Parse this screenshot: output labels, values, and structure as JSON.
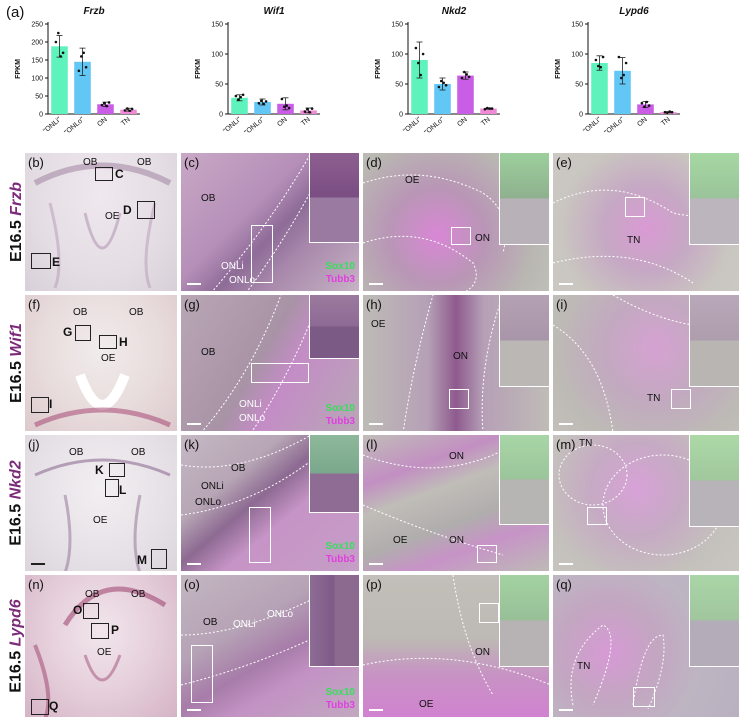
{
  "panel_a_label": "(a)",
  "chart_data": [
    {
      "type": "bar",
      "title": "Frzb",
      "ylabel": "FPKM",
      "categories": [
        "\"ONLi\"",
        "\"ONLo\"",
        "ON",
        "TN"
      ],
      "values": [
        188,
        145,
        27,
        12
      ],
      "errors": [
        30,
        38,
        6,
        4
      ],
      "points": [
        [
          200,
          225,
          160,
          170
        ],
        [
          120,
          160,
          170,
          130
        ],
        [
          25,
          30,
          22,
          32
        ],
        [
          10,
          15,
          9,
          14
        ]
      ],
      "ylim": [
        0,
        250
      ],
      "yticks": [
        0,
        50,
        100,
        150,
        200,
        250
      ],
      "colors": [
        "#5ef2bd",
        "#62c7f5",
        "#c95de6",
        "#f08ad6"
      ]
    },
    {
      "type": "bar",
      "title": "Wif1",
      "ylabel": "FPKM",
      "categories": [
        "\"ONLi\"",
        "\"ONLo\"",
        "ON",
        "TN"
      ],
      "values": [
        27,
        20,
        17,
        6
      ],
      "errors": [
        5,
        5,
        10,
        4
      ],
      "points": [
        [
          30,
          24,
          28,
          32
        ],
        [
          18,
          22,
          17,
          21
        ],
        [
          25,
          12,
          14,
          10
        ],
        [
          4,
          8,
          3,
          9
        ]
      ],
      "ylim": [
        0,
        150
      ],
      "yticks": [
        0,
        50,
        100,
        150
      ],
      "colors": [
        "#5ef2bd",
        "#62c7f5",
        "#c95de6",
        "#f08ad6"
      ]
    },
    {
      "type": "bar",
      "title": "Nkd2",
      "ylabel": "FPKM",
      "categories": [
        "\"ONLi\"",
        "\"ONLo\"",
        "ON",
        "TN"
      ],
      "values": [
        90,
        50,
        64,
        9
      ],
      "errors": [
        30,
        10,
        6,
        1
      ],
      "points": [
        [
          110,
          85,
          65,
          100
        ],
        [
          45,
          55,
          52,
          48
        ],
        [
          60,
          70,
          66,
          62
        ],
        [
          8,
          10,
          9,
          9
        ]
      ],
      "ylim": [
        0,
        150
      ],
      "yticks": [
        0,
        50,
        100,
        150
      ],
      "colors": [
        "#5ef2bd",
        "#62c7f5",
        "#c95de6",
        "#f08ad6"
      ]
    },
    {
      "type": "bar",
      "title": "Lypd6",
      "ylabel": "FPKM",
      "categories": [
        "\"ONLi\"",
        "\"ONLo\"",
        "ON",
        "TN"
      ],
      "values": [
        85,
        72,
        16,
        3
      ],
      "errors": [
        12,
        22,
        5,
        1
      ],
      "points": [
        [
          90,
          80,
          78,
          95
        ],
        [
          95,
          60,
          65,
          85
        ],
        [
          18,
          12,
          20,
          14
        ],
        [
          3,
          2,
          4,
          3
        ]
      ],
      "ylim": [
        0,
        150
      ],
      "yticks": [
        0,
        50,
        100,
        150
      ],
      "colors": [
        "#5ef2bd",
        "#62c7f5",
        "#c95de6",
        "#f08ad6"
      ]
    }
  ],
  "rows": [
    {
      "stage": "E16.5",
      "gene": "Frzb",
      "overview": {
        "label": "(b)",
        "tags": [
          "OB",
          "OB",
          "C",
          "D",
          "OE",
          "E"
        ]
      },
      "panels": [
        {
          "label": "(c)",
          "tags": [
            "OB",
            "ONLi",
            "ONLo"
          ],
          "marker1": "Sox10",
          "marker2": "Tubb3"
        },
        {
          "label": "(d)",
          "tags": [
            "OE",
            "ON"
          ]
        },
        {
          "label": "(e)",
          "tags": [
            "TN"
          ]
        }
      ]
    },
    {
      "stage": "E16.5",
      "gene": "Wif1",
      "overview": {
        "label": "(f)",
        "tags": [
          "OB",
          "OB",
          "G",
          "H",
          "OE",
          "I"
        ]
      },
      "panels": [
        {
          "label": "(g)",
          "tags": [
            "OB",
            "ONLi",
            "ONLo"
          ],
          "marker1": "Sox10",
          "marker2": "Tubb3"
        },
        {
          "label": "(h)",
          "tags": [
            "OE",
            "ON"
          ]
        },
        {
          "label": "(i)",
          "tags": [
            "TN"
          ]
        }
      ]
    },
    {
      "stage": "E16.5",
      "gene": "Nkd2",
      "overview": {
        "label": "(j)",
        "tags": [
          "OB",
          "OB",
          "K",
          "L",
          "OE",
          "M"
        ]
      },
      "panels": [
        {
          "label": "(k)",
          "tags": [
            "OB",
            "ONLi",
            "ONLo"
          ],
          "marker1": "Sox10",
          "marker2": "Tubb3"
        },
        {
          "label": "(l)",
          "tags": [
            "ON",
            "OE",
            "ON"
          ]
        },
        {
          "label": "(m)",
          "tags": [
            "TN"
          ]
        }
      ]
    },
    {
      "stage": "E16.5",
      "gene": "Lypd6",
      "overview": {
        "label": "(n)",
        "tags": [
          "OB",
          "OB",
          "O",
          "P",
          "OE",
          "Q"
        ]
      },
      "panels": [
        {
          "label": "(o)",
          "tags": [
            "OB",
            "ONLi",
            "ONLo"
          ],
          "marker1": "Sox10",
          "marker2": "Tubb3"
        },
        {
          "label": "(p)",
          "tags": [
            "ON",
            "OE"
          ]
        },
        {
          "label": "(q)",
          "tags": [
            "TN"
          ]
        }
      ]
    }
  ]
}
